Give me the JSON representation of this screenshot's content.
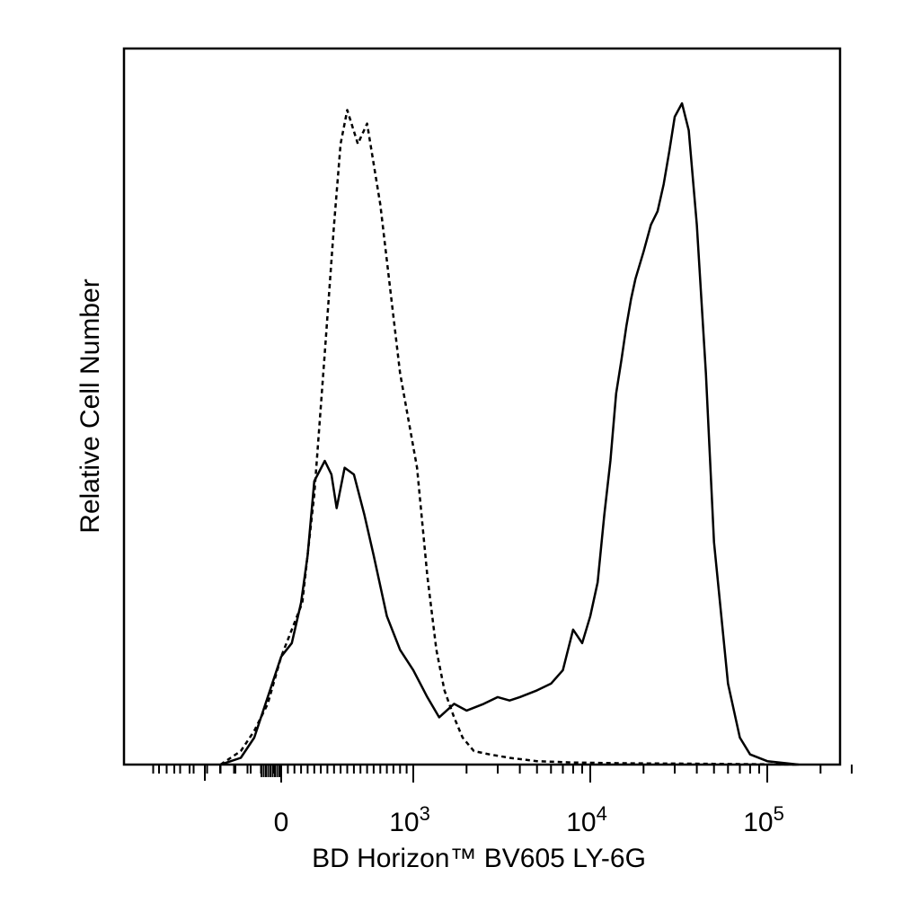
{
  "chart_data": {
    "type": "line",
    "title": "",
    "xlabel": "BD Horizon™ BV605 LY-6G",
    "ylabel": "Relative Cell Number",
    "x_scale": "biexponential",
    "xlim": [
      -600,
      200000
    ],
    "ylim": [
      0,
      1
    ],
    "grid": false,
    "legend": "none",
    "x_ticks": [
      {
        "value": 0,
        "base": "0",
        "exp": ""
      },
      {
        "value": 1000,
        "base": "10",
        "exp": "3"
      },
      {
        "value": 10000,
        "base": "10",
        "exp": "4"
      },
      {
        "value": 100000,
        "base": "10",
        "exp": "5"
      }
    ],
    "series": [
      {
        "line_style": "dashed",
        "color": "#000000",
        "x": [
          -450,
          -300,
          -200,
          -100,
          0,
          80,
          160,
          250,
          330,
          400,
          450,
          500,
          580,
          650,
          750,
          900,
          1050,
          1200,
          1350,
          1500,
          1700,
          1900,
          2200,
          2700,
          3500,
          5000,
          8000,
          15000,
          50000,
          150000
        ],
        "y": [
          0.0,
          0.02,
          0.05,
          0.09,
          0.16,
          0.2,
          0.24,
          0.4,
          0.61,
          0.8,
          0.92,
          0.97,
          0.92,
          0.95,
          0.83,
          0.58,
          0.44,
          0.28,
          0.17,
          0.11,
          0.07,
          0.04,
          0.02,
          0.015,
          0.01,
          0.005,
          0.003,
          0.002,
          0.001,
          0.0
        ]
      },
      {
        "line_style": "solid",
        "color": "#000000",
        "x": [
          -450,
          -300,
          -200,
          -100,
          0,
          80,
          150,
          200,
          250,
          330,
          380,
          420,
          480,
          550,
          630,
          700,
          800,
          900,
          1000,
          1200,
          1400,
          1700,
          2000,
          2500,
          3000,
          3500,
          4000,
          5000,
          6000,
          7000,
          8000,
          9000,
          10000,
          11000,
          12000,
          13000,
          14000,
          15000,
          16000,
          17000,
          18000,
          20000,
          22000,
          24000,
          26000,
          28000,
          30000,
          33000,
          36000,
          40000,
          45000,
          50000,
          60000,
          70000,
          80000,
          100000,
          150000
        ],
        "y": [
          0.0,
          0.01,
          0.04,
          0.1,
          0.16,
          0.18,
          0.24,
          0.31,
          0.42,
          0.45,
          0.43,
          0.38,
          0.44,
          0.43,
          0.37,
          0.31,
          0.22,
          0.17,
          0.14,
          0.1,
          0.07,
          0.09,
          0.08,
          0.09,
          0.1,
          0.095,
          0.1,
          0.11,
          0.12,
          0.14,
          0.2,
          0.18,
          0.22,
          0.27,
          0.37,
          0.45,
          0.55,
          0.6,
          0.65,
          0.69,
          0.72,
          0.76,
          0.8,
          0.82,
          0.86,
          0.91,
          0.96,
          0.98,
          0.94,
          0.8,
          0.58,
          0.33,
          0.12,
          0.04,
          0.015,
          0.005,
          0.0
        ]
      }
    ]
  }
}
